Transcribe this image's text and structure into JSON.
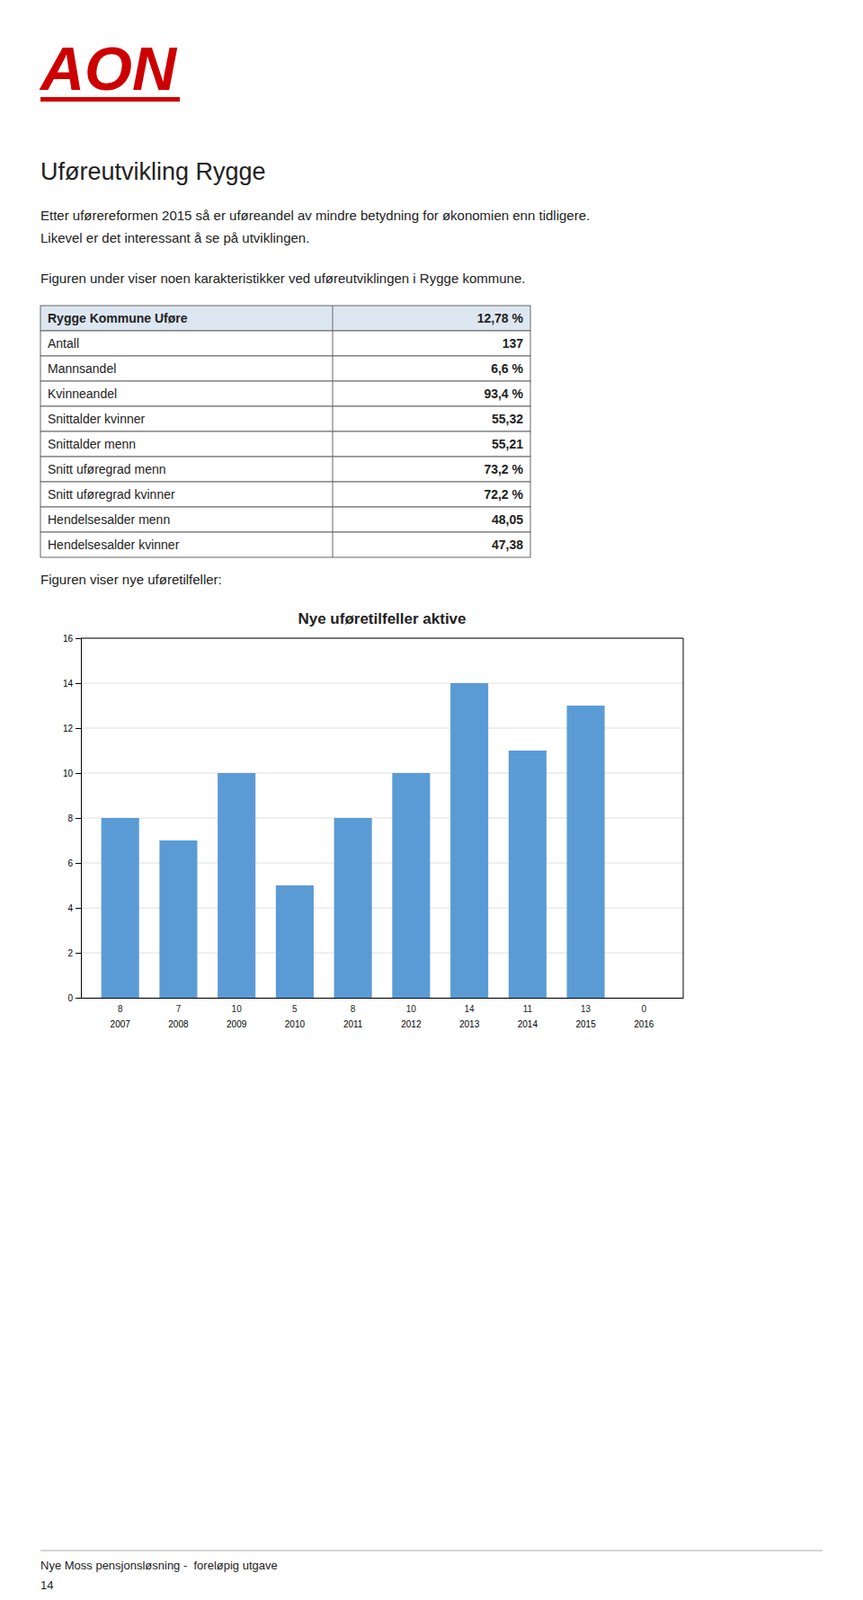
{
  "logo": {
    "text": "AON",
    "color": "#CC0000"
  },
  "title": "Uføreutvikling Rygge",
  "body": [
    "Etter uførereformen 2015 så er uføreandel av mindre betydning for økonomien enn tidligere.",
    "Likevel er det interessant å se på utviklingen.",
    "Figuren under viser noen karakteristikker ved uføreutviklingen i Rygge kommune."
  ],
  "table": {
    "header": [
      "Rygge Kommune Uføre",
      "12,78 %"
    ],
    "rows": [
      [
        "Antall",
        "137"
      ],
      [
        "Mannsandel",
        "6,6 %"
      ],
      [
        "Kvinneandel",
        "93,4 %"
      ],
      [
        "Snittalder kvinner",
        "55,32"
      ],
      [
        "Snittalder menn",
        "55,21"
      ],
      [
        "Snitt uføregrad menn",
        "73,2 %"
      ],
      [
        "Snitt uføregrad kvinner",
        "72,2 %"
      ],
      [
        "Hendelsesalder menn",
        "48,05"
      ],
      [
        "Hendelsesalder kvinner",
        "47,38"
      ]
    ]
  },
  "intro": "Figuren viser nye uføretilfeller:",
  "chart_data": {
    "type": "bar",
    "title": "Nye uføretilfeller aktive",
    "categories": [
      "2007",
      "2008",
      "2009",
      "2010",
      "2011",
      "2012",
      "2013",
      "2014",
      "2015",
      "2016"
    ],
    "values": [
      8,
      7,
      10,
      5,
      8,
      10,
      14,
      11,
      13,
      0
    ],
    "color": "#5B9BD5",
    "ylim": [
      0,
      16
    ],
    "yticks": [
      0,
      2,
      4,
      6,
      8,
      10,
      12,
      14,
      16
    ],
    "grid": true,
    "data_labels": true
  },
  "footer": [
    "Nye Moss pensjonsløsning -  foreløpig utgave",
    "14"
  ]
}
